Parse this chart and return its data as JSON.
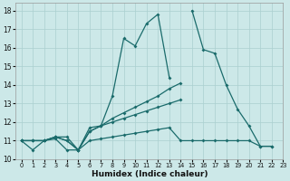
{
  "xlabel": "Humidex (Indice chaleur)",
  "xlim": [
    -0.5,
    23
  ],
  "ylim": [
    10,
    18.4
  ],
  "yticks": [
    10,
    11,
    12,
    13,
    14,
    15,
    16,
    17,
    18
  ],
  "xticks": [
    0,
    1,
    2,
    3,
    4,
    5,
    6,
    7,
    8,
    9,
    10,
    11,
    12,
    13,
    14,
    15,
    16,
    17,
    18,
    19,
    20,
    21,
    22,
    23
  ],
  "bg_color": "#cce8e8",
  "grid_color": "#aacfcf",
  "line_color": "#1a6b6b",
  "line1_y": [
    11.0,
    10.5,
    11.0,
    11.2,
    11.2,
    10.5,
    11.7,
    11.8,
    13.4,
    16.5,
    16.1,
    17.3,
    17.8,
    14.4,
    null,
    18.0,
    15.9,
    15.7,
    14.0,
    12.7,
    11.8,
    10.7,
    10.7,
    null
  ],
  "line2_y": [
    11.0,
    11.0,
    11.0,
    11.1,
    10.5,
    10.5,
    11.0,
    11.1,
    11.2,
    11.3,
    11.4,
    11.5,
    11.6,
    11.7,
    11.0,
    11.0,
    11.0,
    11.0,
    11.0,
    11.0,
    11.0,
    10.7,
    10.7,
    null
  ],
  "line3_y": [
    11.0,
    11.0,
    11.0,
    11.2,
    11.0,
    10.5,
    11.5,
    11.8,
    12.0,
    12.2,
    12.4,
    12.6,
    12.8,
    13.0,
    13.2,
    null,
    null,
    null,
    null,
    null,
    null,
    null,
    null,
    null
  ],
  "line4_y": [
    11.0,
    11.0,
    11.0,
    11.2,
    11.0,
    10.5,
    11.5,
    11.8,
    12.2,
    12.5,
    12.8,
    13.1,
    13.4,
    13.8,
    14.1,
    null,
    null,
    null,
    null,
    null,
    null,
    null,
    null,
    null
  ]
}
